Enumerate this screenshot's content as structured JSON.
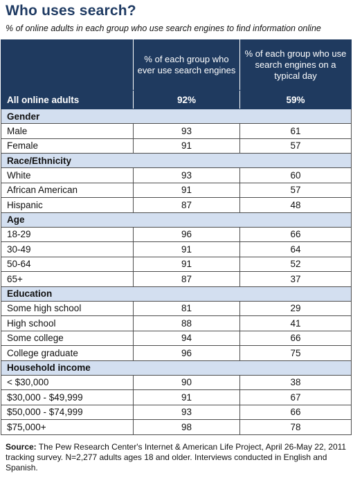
{
  "title": "Who uses search?",
  "subtitle": "% of online adults in each group who use search engines to find information online",
  "chart_data": {
    "type": "table",
    "columns": [
      "",
      "% of each group who ever use search engines",
      "% of each group who use search engines on a typical day"
    ],
    "total": {
      "label": "All online adults",
      "values": [
        "92%",
        "59%"
      ]
    },
    "sections": [
      {
        "name": "Gender",
        "rows": [
          {
            "label": "Male",
            "values": [
              93,
              61
            ]
          },
          {
            "label": "Female",
            "values": [
              91,
              57
            ]
          }
        ]
      },
      {
        "name": "Race/Ethnicity",
        "rows": [
          {
            "label": "White",
            "values": [
              93,
              60
            ]
          },
          {
            "label": "African American",
            "values": [
              91,
              57
            ]
          },
          {
            "label": "Hispanic",
            "values": [
              87,
              48
            ]
          }
        ]
      },
      {
        "name": "Age",
        "rows": [
          {
            "label": "18-29",
            "values": [
              96,
              66
            ]
          },
          {
            "label": "30-49",
            "values": [
              91,
              64
            ]
          },
          {
            "label": "50-64",
            "values": [
              91,
              52
            ]
          },
          {
            "label": "65+",
            "values": [
              87,
              37
            ]
          }
        ]
      },
      {
        "name": "Education",
        "rows": [
          {
            "label": "Some high school",
            "values": [
              81,
              29
            ]
          },
          {
            "label": "High school",
            "values": [
              88,
              41
            ]
          },
          {
            "label": "Some college",
            "values": [
              94,
              66
            ]
          },
          {
            "label": "College graduate",
            "values": [
              96,
              75
            ]
          }
        ]
      },
      {
        "name": "Household income",
        "rows": [
          {
            "label": "< $30,000",
            "values": [
              90,
              38
            ]
          },
          {
            "label": "$30,000 - $49,999",
            "values": [
              91,
              67
            ]
          },
          {
            "label": "$50,000 - $74,999",
            "values": [
              93,
              66
            ]
          },
          {
            "label": "$75,000+",
            "values": [
              98,
              78
            ]
          }
        ]
      }
    ]
  },
  "source": {
    "label": "Source:",
    "text": " The Pew Research Center's Internet & American Life Project, April 26-May 22, 2011 tracking survey. N=2,277 adults ages 18 and older. Interviews conducted in English and Spanish."
  }
}
